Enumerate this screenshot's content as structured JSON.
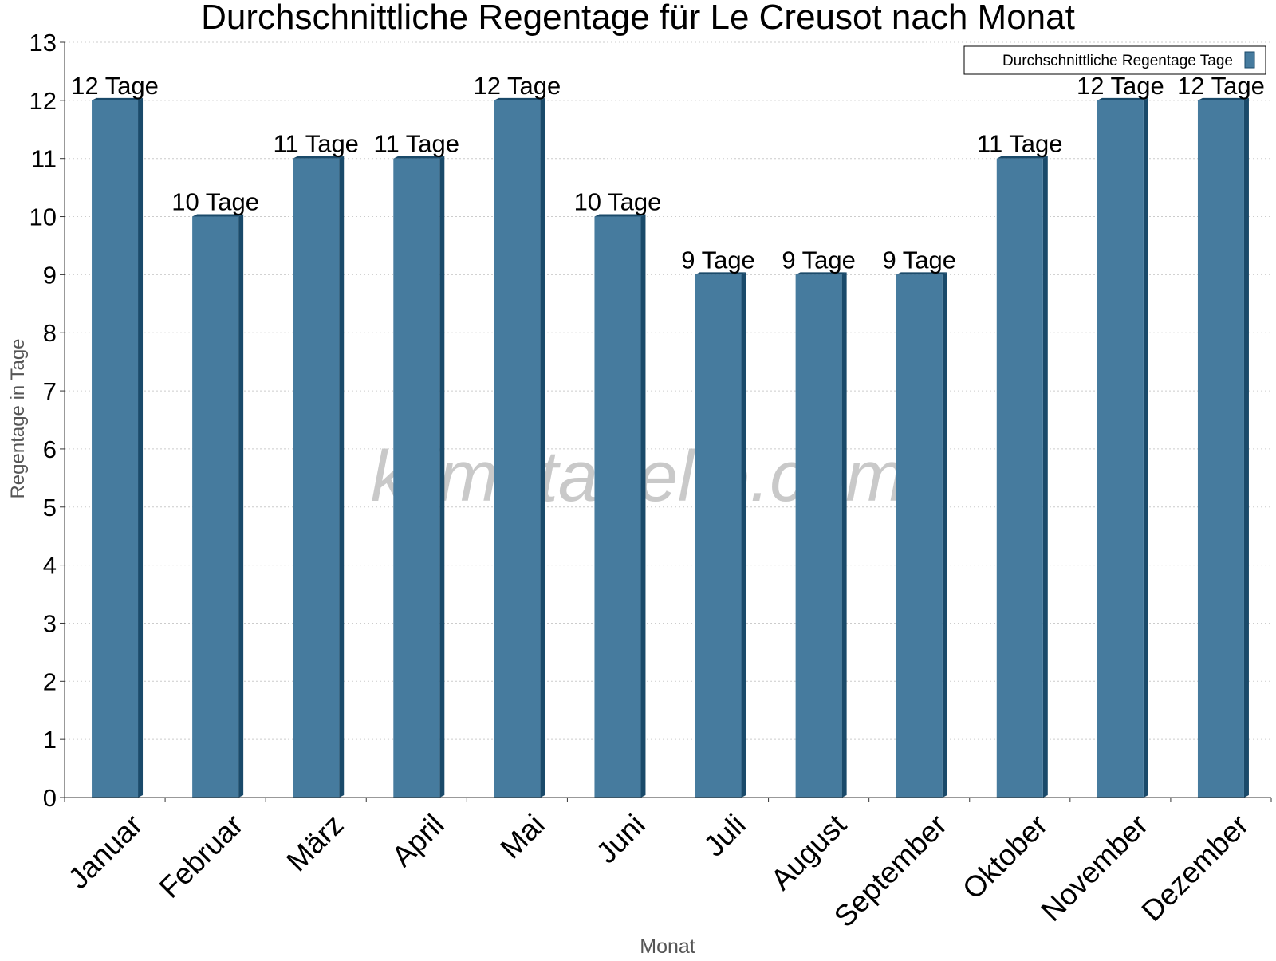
{
  "chart_data": {
    "type": "bar",
    "title": "Durchschnittliche Regentage für Le Creusot nach Monat",
    "xlabel": "Monat",
    "ylabel": "Regentage in Tage",
    "categories": [
      "Januar",
      "Februar",
      "März",
      "April",
      "Mai",
      "Juni",
      "Juli",
      "August",
      "September",
      "Oktober",
      "November",
      "Dezember"
    ],
    "series": [
      {
        "name": "Durchschnittliche Regentage Tage",
        "values": [
          12,
          10,
          11,
          11,
          12,
          10,
          9,
          9,
          9,
          11,
          12,
          12
        ],
        "data_labels": [
          "12 Tage",
          "10 Tage",
          "11 Tage",
          "11 Tage",
          "12 Tage",
          "10 Tage",
          "9 Tage",
          "9 Tage",
          "9 Tage",
          "11 Tage",
          "12 Tage",
          "12 Tage"
        ]
      }
    ],
    "ylim": [
      0,
      13
    ],
    "yticks": [
      "0",
      "1",
      "2",
      "3",
      "4",
      "5",
      "6",
      "7",
      "8",
      "9",
      "10",
      "11",
      "12",
      "13"
    ],
    "grid": true,
    "legend_position": "top-right",
    "watermark": "klimatabelle.com",
    "colors": {
      "bar": "#467b9e",
      "bar_side": "#1a4a6a",
      "grid": "#cccccc",
      "axis": "#333333",
      "text": "#000000",
      "axis_title": "#555555",
      "watermark": "#c0c0c0"
    }
  }
}
